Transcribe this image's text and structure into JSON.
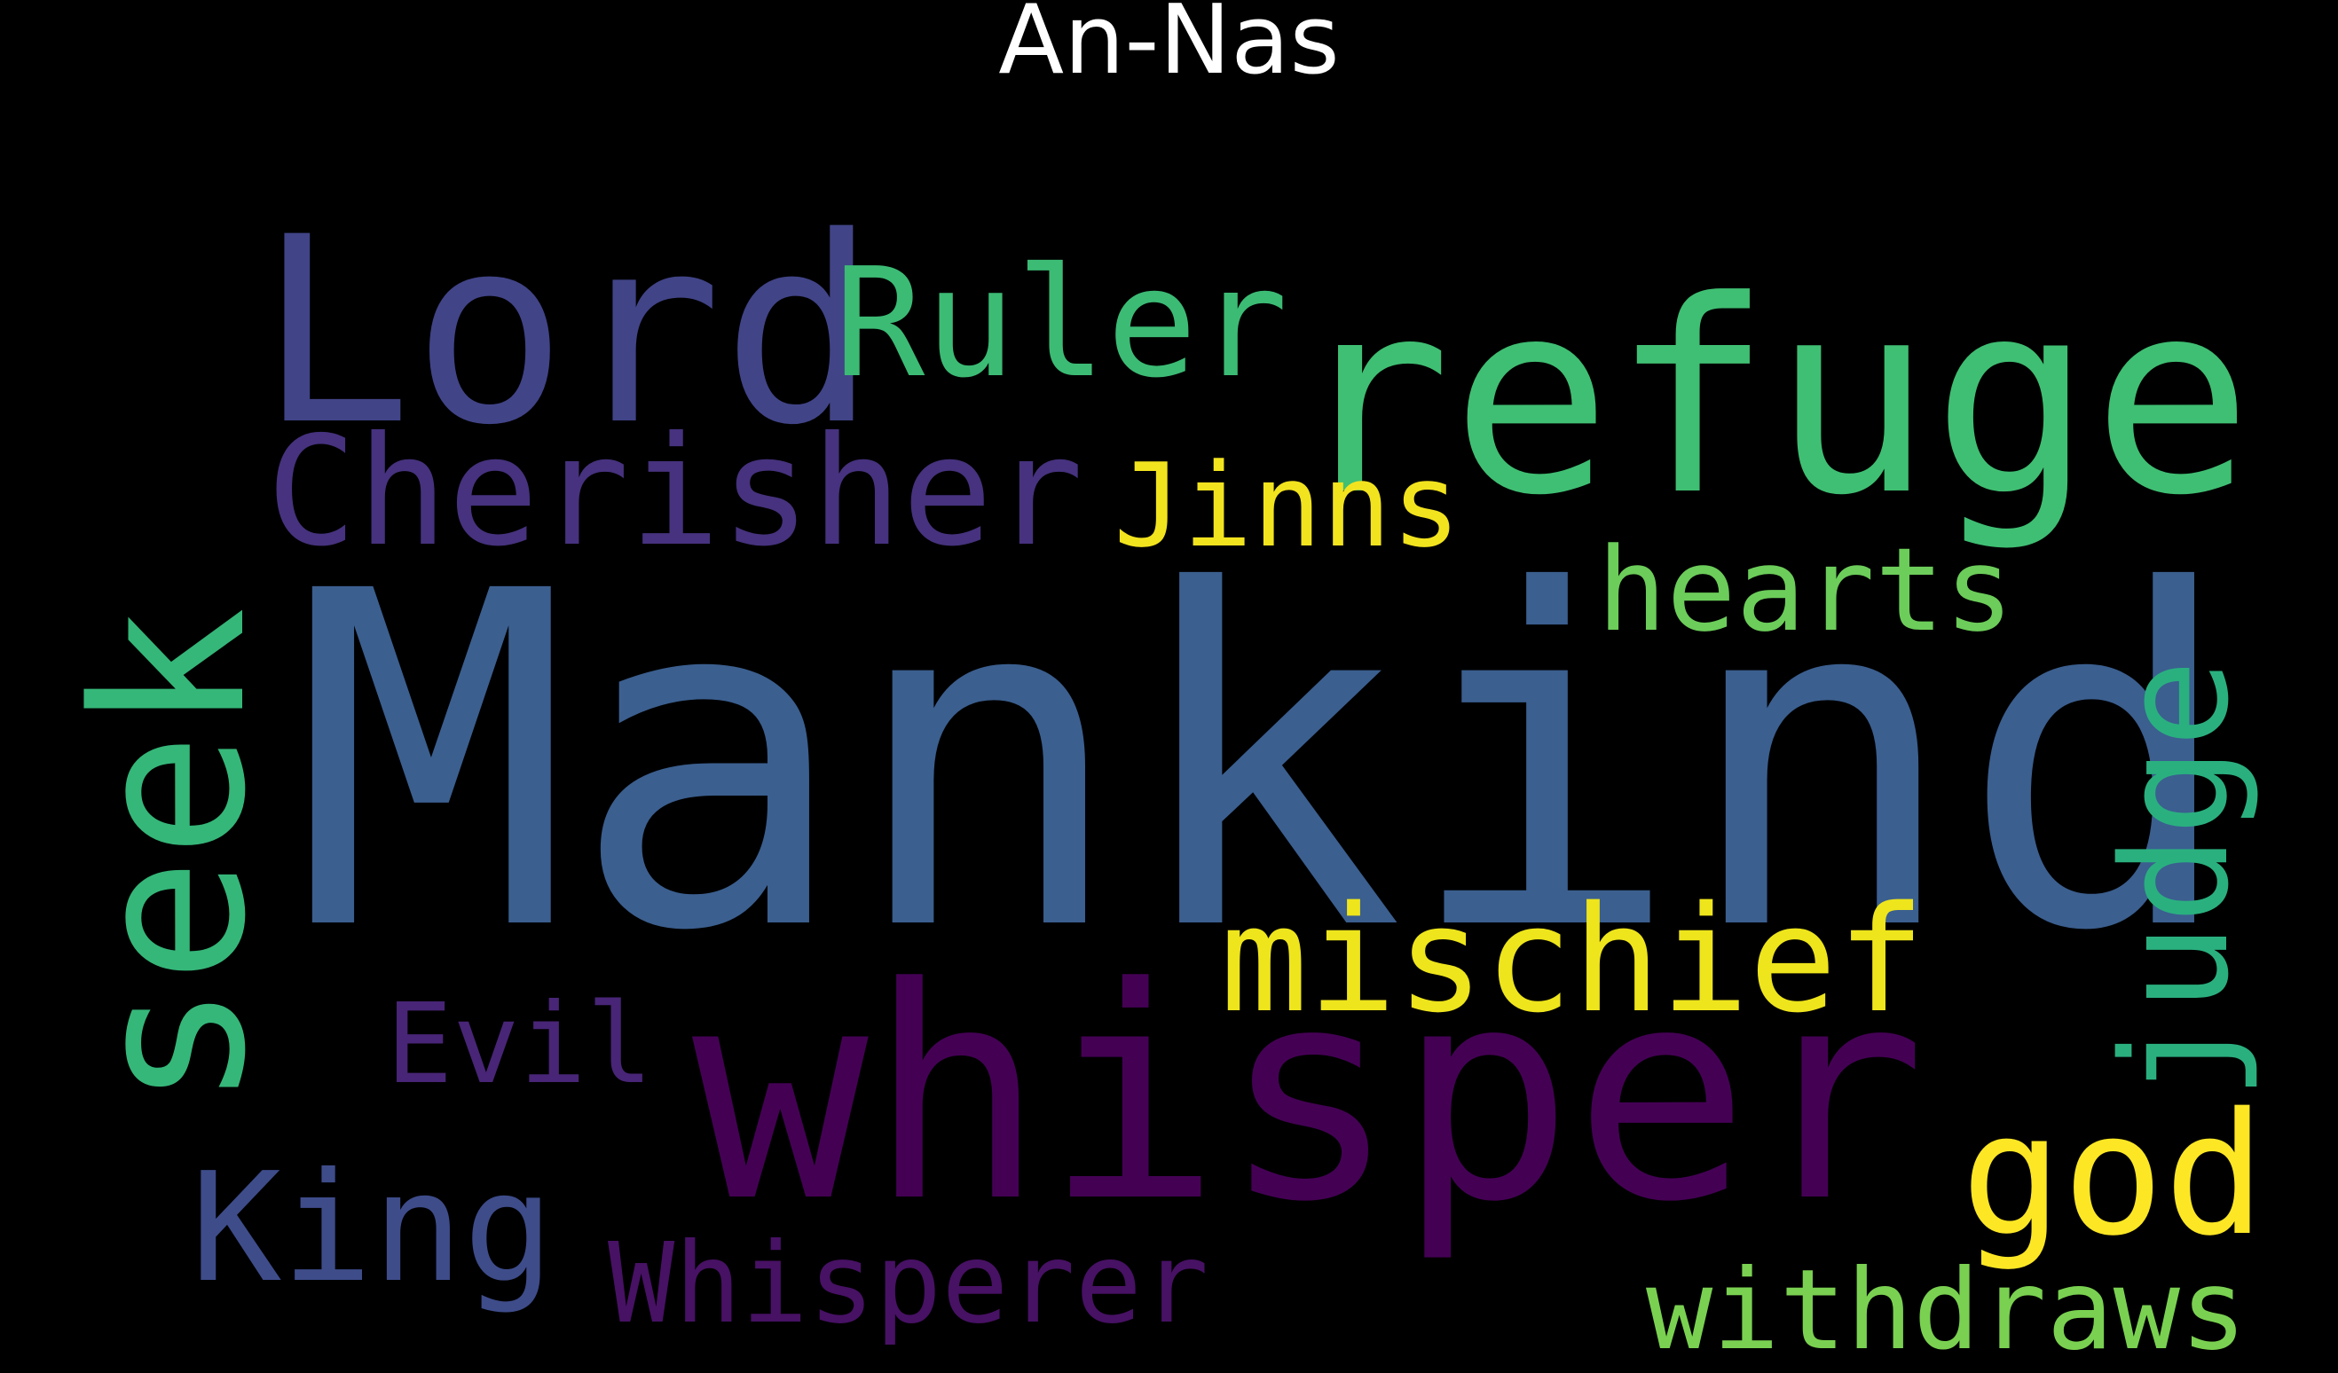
{
  "title": "An-Nas",
  "words": [
    {
      "text": "Mankind",
      "color": "#3b5f8f"
    },
    {
      "text": "whisper",
      "color": "#440154"
    },
    {
      "text": "refuge",
      "color": "#3fbf73"
    },
    {
      "text": "Lord",
      "color": "#414487"
    },
    {
      "text": "seek",
      "color": "#35b779"
    },
    {
      "text": "Ruler",
      "color": "#3cbb75"
    },
    {
      "text": "Cherisher",
      "color": "#46327e"
    },
    {
      "text": "Jinns",
      "color": "#f2e31f"
    },
    {
      "text": "hearts",
      "color": "#6ccd5a"
    },
    {
      "text": "judge",
      "color": "#2ab07f"
    },
    {
      "text": "mischief",
      "color": "#eee51c"
    },
    {
      "text": "Evil",
      "color": "#482576"
    },
    {
      "text": "god",
      "color": "#fde725"
    },
    {
      "text": "King",
      "color": "#3e4c8a"
    },
    {
      "text": "Whisperer",
      "color": "#471164"
    },
    {
      "text": "withdraws",
      "color": "#7ad151"
    }
  ]
}
